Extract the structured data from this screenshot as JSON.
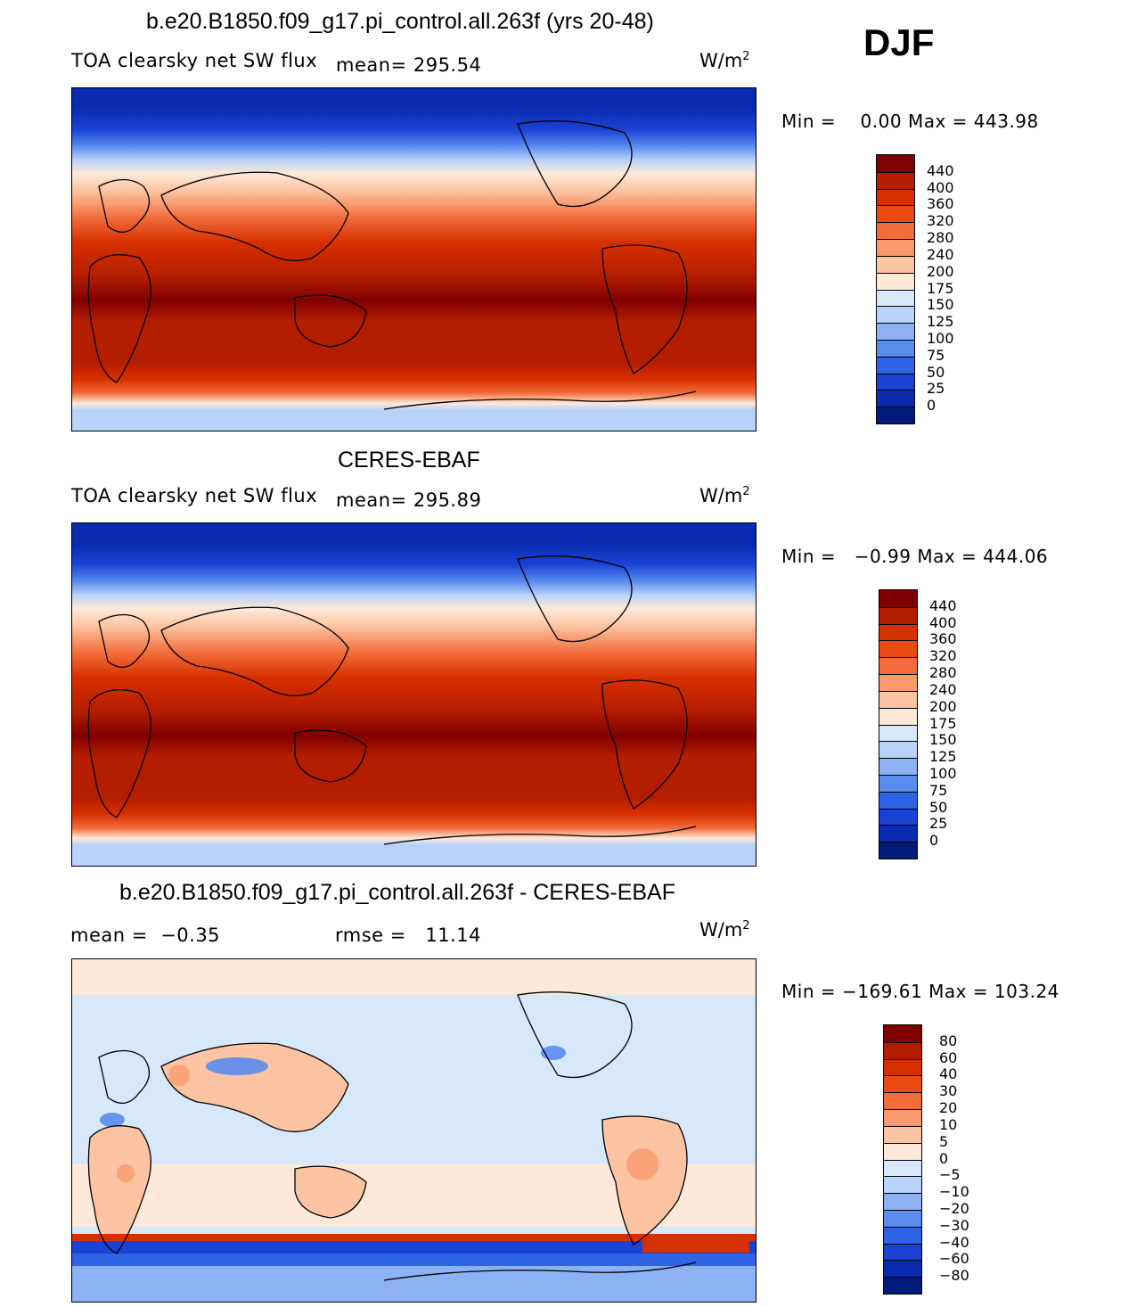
{
  "season": "DJF",
  "panels": [
    {
      "title": "b.e20.B1850.f09_g17.pi_control.all.263f (yrs 20-48)",
      "variable": "TOA clearsky net SW flux",
      "mean_label": "mean=",
      "mean_value": "295.54",
      "units": "W/m",
      "units_exp": "2",
      "min_label": "Min =",
      "min_value": "0.00",
      "max_label": "Max =",
      "max_value": "443.98",
      "colorbar_levels": [
        "440",
        "400",
        "360",
        "320",
        "280",
        "240",
        "200",
        "175",
        "150",
        "125",
        "100",
        "75",
        "50",
        "25",
        "0"
      ]
    },
    {
      "title": "CERES-EBAF",
      "variable": "TOA clearsky net SW flux",
      "mean_label": "mean=",
      "mean_value": "295.89",
      "units": "W/m",
      "units_exp": "2",
      "min_label": "Min =",
      "min_value": "−0.99",
      "max_label": "Max =",
      "max_value": "444.06",
      "colorbar_levels": [
        "440",
        "400",
        "360",
        "320",
        "280",
        "240",
        "200",
        "175",
        "150",
        "125",
        "100",
        "75",
        "50",
        "25",
        "0"
      ]
    },
    {
      "title": "b.e20.B1850.f09_g17.pi_control.all.263f - CERES-EBAF",
      "mean_label": "mean =",
      "mean_value": "−0.35",
      "rmse_label": "rmse =",
      "rmse_value": "11.14",
      "units": "W/m",
      "units_exp": "2",
      "min_label": "Min =",
      "min_value": "−169.61",
      "max_label": "Max =",
      "max_value": "103.24",
      "colorbar_levels": [
        "80",
        "60",
        "40",
        "30",
        "20",
        "10",
        "5",
        "0",
        "−5",
        "−10",
        "−20",
        "−30",
        "−40",
        "−60",
        "−80"
      ]
    }
  ],
  "colors": {
    "abs_scale": [
      "#7f0000",
      "#b31d00",
      "#d73000",
      "#ea4a12",
      "#f26b3a",
      "#f99a6e",
      "#fcc4a2",
      "#fee9d9",
      "#d8e8fb",
      "#b9d2f8",
      "#8cb2f4",
      "#5a8cee",
      "#2f63e6",
      "#1a42d4",
      "#0a2bb0",
      "#001b7a"
    ],
    "diff_scale": [
      "#7f0000",
      "#b31d00",
      "#d73000",
      "#ea4a12",
      "#f26b3a",
      "#f99a6e",
      "#fcc4a2",
      "#fee9d9",
      "#d8e8fb",
      "#b9d2f8",
      "#8cb2f4",
      "#5a8cee",
      "#2f63e6",
      "#1a42d4",
      "#0a2bb0",
      "#001b7a"
    ]
  }
}
